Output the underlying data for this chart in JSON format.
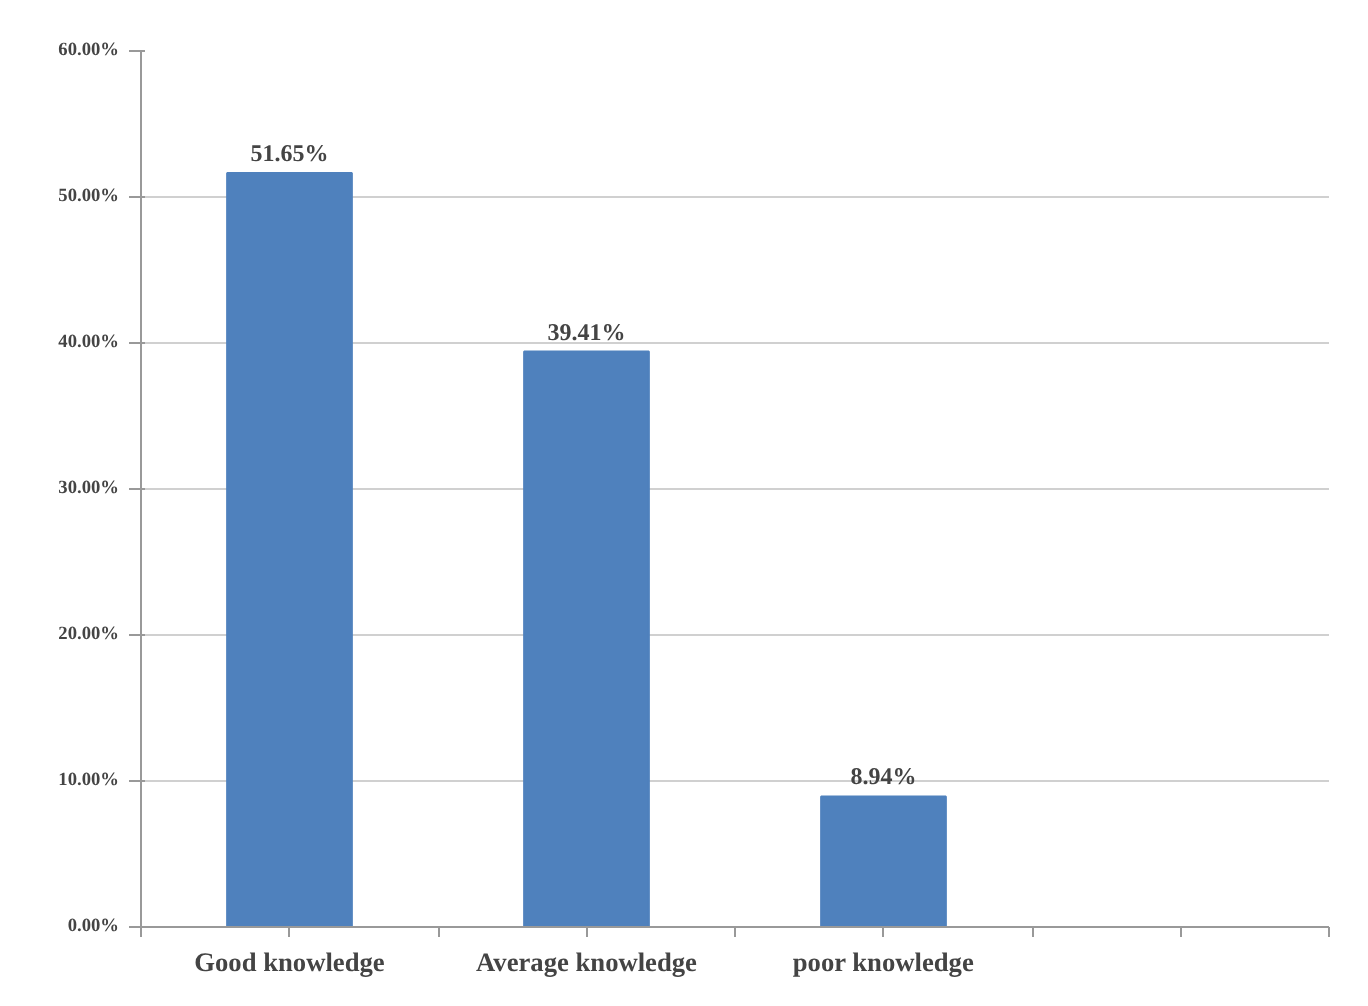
{
  "chart_data": {
    "type": "bar",
    "categories": [
      "Good knowledge",
      "Average knowledge",
      "poor knowledge",
      null
    ],
    "values": [
      51.65,
      39.41,
      8.94,
      null
    ],
    "color": "#4f81bd",
    "value_labels": [
      "51.65%",
      "39.41%",
      "8.94%",
      null
    ],
    "ylim": [
      0,
      60
    ],
    "yticks": [
      {
        "value": 0,
        "label": "0.00%"
      },
      {
        "value": 10,
        "label": "10.00%"
      },
      {
        "value": 20,
        "label": "20.00%"
      },
      {
        "value": 30,
        "label": "30.00%"
      },
      {
        "value": 40,
        "label": "40.00%"
      },
      {
        "value": 50,
        "label": "50.00%"
      },
      {
        "value": 60,
        "label": "60.00%"
      }
    ],
    "grid": "y"
  }
}
